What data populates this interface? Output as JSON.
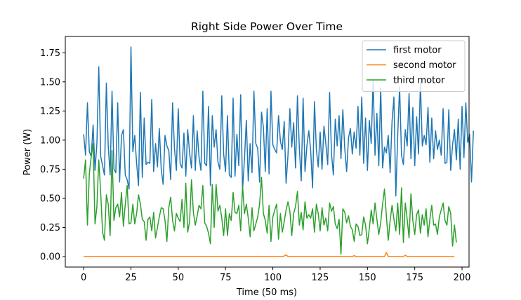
{
  "chart_data": {
    "type": "line",
    "title": "Right Side Power Over Time",
    "xlabel": "Time (50 ms)",
    "ylabel": "Power (W)",
    "xlim": [
      -9.7,
      203.7
    ],
    "ylim": [
      -0.09,
      1.89
    ],
    "xticks": [
      0,
      25,
      50,
      75,
      100,
      125,
      150,
      175,
      200
    ],
    "xtick_labels": [
      "0",
      "25",
      "50",
      "75",
      "100",
      "125",
      "150",
      "175",
      "200"
    ],
    "yticks": [
      0.0,
      0.25,
      0.5,
      0.75,
      1.0,
      1.25,
      1.5,
      1.75
    ],
    "ytick_labels": [
      "0.00",
      "0.25",
      "0.50",
      "0.75",
      "1.00",
      "1.25",
      "1.50",
      "1.75"
    ],
    "legend_position": "top-right",
    "grid": false,
    "series": [
      {
        "name": "first motor",
        "color": "#1f77b4",
        "values": [
          1.05,
          0.87,
          1.32,
          0.9,
          0.86,
          1.13,
          0.74,
          0.97,
          1.63,
          0.86,
          0.78,
          0.7,
          1.49,
          0.95,
          0.7,
          1.42,
          0.75,
          0.72,
          1.32,
          0.64,
          1.04,
          1.09,
          0.7,
          0.66,
          0.58,
          1.8,
          0.9,
          1.04,
          0.8,
          0.61,
          1.41,
          0.68,
          1.19,
          0.79,
          0.81,
          0.8,
          1.35,
          0.73,
          0.97,
          0.77,
          1.1,
          0.75,
          0.62,
          1.04,
          0.95,
          0.91,
          0.66,
          1.32,
          0.93,
          0.74,
          1.27,
          0.8,
          0.76,
          1.06,
          0.69,
          1.09,
          0.89,
          0.76,
          1.21,
          0.74,
          1.08,
          0.85,
          0.74,
          1.42,
          0.8,
          0.78,
          1.29,
          0.61,
          1.21,
          0.94,
          1.09,
          0.81,
          0.75,
          1.38,
          0.88,
          0.73,
          1.21,
          0.7,
          0.68,
          1.36,
          0.69,
          1.05,
          0.78,
          1.39,
          0.57,
          0.84,
          1.17,
          0.65,
          0.97,
          0.72,
          1.42,
          0.97,
          0.93,
          0.64,
          1.24,
          1.11,
          0.73,
          1.27,
          0.71,
          1.42,
          0.96,
          0.92,
          0.89,
          1.21,
          0.99,
          0.92,
          1.16,
          0.63,
          0.87,
          1.27,
          0.94,
          1.15,
          0.76,
          1.38,
          0.93,
          0.65,
          1.36,
          0.73,
          0.95,
          1.08,
          0.91,
          0.59,
          1.33,
          0.92,
          0.77,
          1.07,
          0.75,
          1.12,
          0.97,
          0.79,
          1.41,
          0.88,
          0.7,
          1.18,
          0.95,
          1.21,
          0.84,
          1.26,
          0.93,
          0.73,
          1.02,
          1.1,
          0.88,
          1.07,
          0.93,
          1.29,
          0.87,
          1.37,
          0.8,
          1.19,
          0.74,
          1.17,
          0.97,
          1.52,
          0.87,
          1.23,
          0.78,
          1.45,
          0.76,
          0.94,
          0.89,
          1.04,
          0.72,
          1.16,
          1.37,
          0.52,
          1.04,
          1.46,
          0.87,
          0.79,
          1.09,
          0.95,
          1.4,
          0.84,
          1.28,
          0.78,
          1.2,
          0.88,
          1.49,
          0.95,
          1.04,
          0.96,
          1.28,
          0.81,
          1.19,
          0.84,
          1.08,
          0.92,
          1.0,
          0.87,
          1.27,
          0.8,
          0.81,
          1.26,
          0.74,
          0.96,
          1.09,
          0.83,
          1.18,
          0.75,
          1.29,
          0.85,
          1.32,
          0.98,
          1.05,
          0.64,
          1.08
        ]
      },
      {
        "name": "second motor",
        "color": "#ff7f0e",
        "values": [
          0,
          0,
          0,
          0,
          0,
          0,
          0,
          0,
          0,
          0,
          0,
          0,
          0,
          0,
          0,
          0,
          0,
          0,
          0,
          0,
          0,
          0,
          0,
          0,
          0,
          0,
          0,
          0,
          0,
          0,
          0,
          0,
          0,
          0,
          0,
          0,
          0,
          0,
          0,
          0,
          0,
          0,
          0,
          0,
          0,
          0,
          0,
          0,
          0,
          0,
          0,
          0,
          0,
          0,
          0,
          0,
          0,
          0,
          0,
          0,
          0,
          0,
          0,
          0,
          0,
          0,
          0,
          0,
          0,
          0,
          0,
          0,
          0,
          0,
          0,
          0,
          0,
          0,
          0,
          0,
          0,
          0,
          0,
          0,
          0,
          0,
          0,
          0,
          0,
          0,
          0,
          0,
          0,
          0,
          0,
          0,
          0,
          0,
          0,
          0,
          0,
          0,
          0,
          0,
          0,
          0,
          0.005,
          0.015,
          0,
          0,
          0,
          0,
          0,
          0,
          0,
          0,
          0,
          0,
          0,
          0,
          0,
          0,
          0,
          0,
          0,
          0,
          0,
          0,
          0,
          0,
          0,
          0,
          0,
          0,
          0,
          0,
          0,
          0,
          0,
          0,
          0,
          0,
          0,
          0.008,
          0,
          0,
          0,
          0,
          0,
          0,
          0,
          0,
          0,
          0,
          0,
          0,
          0,
          0,
          0,
          0,
          0.035,
          0,
          0,
          0,
          0,
          0,
          0,
          0,
          0,
          0,
          0.012,
          0,
          0,
          0,
          0,
          0,
          0,
          0,
          0,
          0,
          0,
          0,
          0,
          0,
          0,
          0,
          0,
          0,
          0,
          0,
          0,
          0,
          0,
          0,
          0,
          0,
          0
        ]
      },
      {
        "name": "third motor",
        "color": "#2ca02c",
        "values": [
          0.67,
          0.83,
          0.27,
          0.71,
          0.86,
          0.97,
          0.28,
          0.43,
          0.83,
          0.55,
          0.21,
          0.14,
          0.53,
          0.45,
          0.18,
          0.91,
          0.31,
          0.42,
          0.45,
          0.34,
          0.55,
          0.26,
          0.45,
          0.61,
          0.28,
          0.29,
          0.45,
          0.28,
          0.37,
          0.53,
          0.45,
          0.32,
          0.3,
          0.14,
          0.32,
          0.34,
          0.22,
          0.38,
          0.16,
          0.25,
          0.34,
          0.42,
          0.41,
          0.31,
          0.13,
          0.42,
          0.51,
          0.31,
          0.22,
          0.37,
          0.33,
          0.3,
          0.49,
          0.25,
          0.63,
          0.21,
          0.3,
          0.66,
          0.38,
          0.27,
          0.35,
          0.44,
          0.41,
          0.61,
          0.29,
          0.26,
          0.2,
          0.11,
          0.62,
          0.25,
          0.62,
          0.39,
          0.44,
          0.33,
          0.18,
          0.41,
          0.18,
          0.37,
          0.31,
          0.55,
          0.38,
          0.37,
          0.44,
          0.22,
          0.61,
          0.37,
          0.45,
          0.33,
          0.17,
          0.42,
          0.22,
          0.28,
          0.34,
          0.45,
          0.68,
          0.37,
          0.31,
          0.2,
          0.44,
          0.13,
          0.34,
          0.4,
          0.45,
          0.15,
          0.37,
          0.21,
          0.3,
          0.4,
          0.47,
          0.39,
          0.18,
          0.37,
          0.43,
          0.56,
          0.27,
          0.38,
          0.23,
          0.47,
          0.33,
          0.36,
          0.33,
          0.41,
          0.21,
          0.45,
          0.37,
          0.22,
          0.42,
          0.27,
          0.33,
          0.22,
          0.46,
          0.39,
          0.43,
          0.28,
          0.24,
          0.32,
          0.02,
          0.41,
          0.38,
          0.29,
          0.35,
          0.26,
          0.23,
          0.13,
          0.28,
          0.26,
          0.18,
          0.19,
          0.34,
          0.27,
          0.11,
          0.24,
          0.4,
          0.28,
          0.46,
          0.32,
          0.19,
          0.29,
          0.45,
          0.58,
          0.35,
          0.14,
          0.31,
          0.44,
          0.32,
          0.22,
          0.46,
          0.19,
          0.59,
          0.12,
          0.46,
          0.32,
          0.16,
          0.54,
          0.31,
          0.19,
          0.36,
          0.4,
          0.2,
          0.36,
          0.27,
          0.41,
          0.17,
          0.32,
          0.44,
          0.27,
          0.28,
          0.19,
          0.34,
          0.4,
          0.46,
          0.31,
          0.27,
          0.43,
          0.37,
          0.09,
          0.27,
          0.12
        ]
      }
    ]
  }
}
